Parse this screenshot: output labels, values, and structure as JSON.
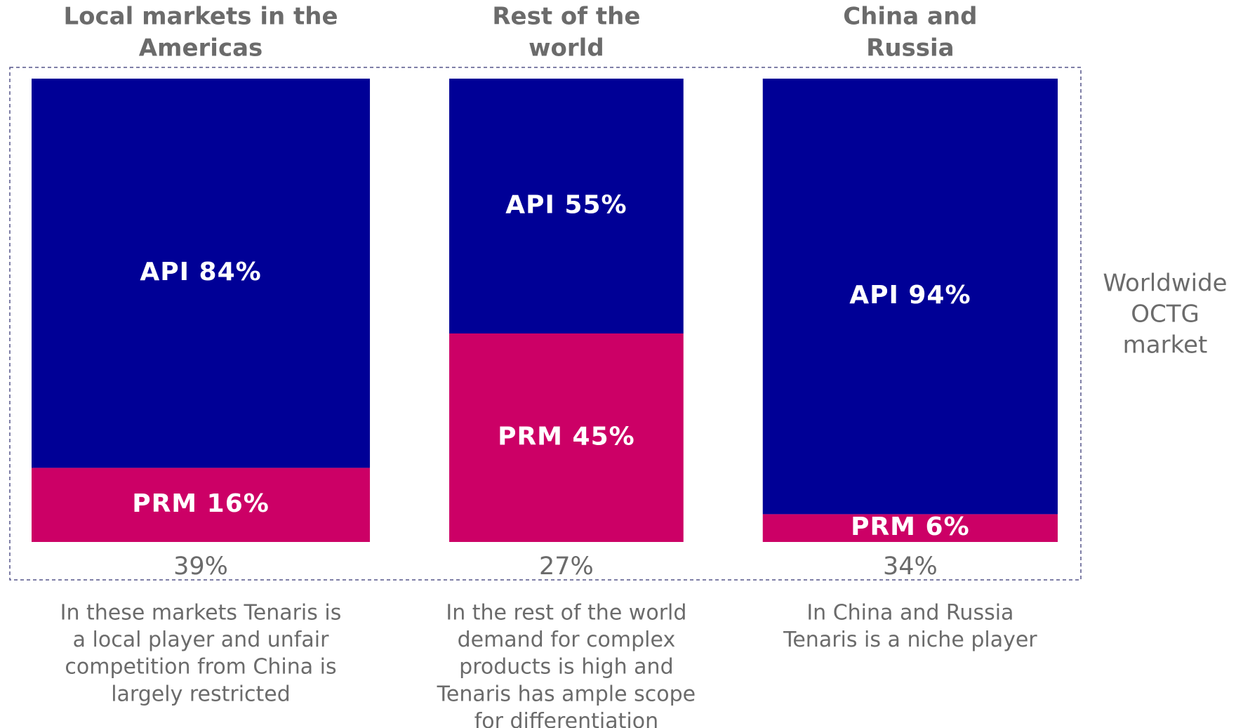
{
  "chart_data": {
    "type": "mekko",
    "categories": [
      [
        "Local markets in the",
        "Americas"
      ],
      [
        "Rest of the",
        "world"
      ],
      [
        "China and",
        "Russia"
      ]
    ],
    "widths": [
      39,
      27,
      34
    ],
    "width_labels": [
      "39%",
      "27%",
      "34%"
    ],
    "series": [
      {
        "name": "PRM",
        "color": "#cc0066",
        "values": [
          16,
          45,
          6
        ],
        "value_labels": [
          "PRM 16%",
          "PRM 45%",
          "PRM 6%"
        ]
      },
      {
        "name": "API",
        "color": "#000096",
        "values": [
          84,
          55,
          94
        ],
        "value_labels": [
          "API 84%",
          "API 55%",
          "API 94%"
        ]
      }
    ],
    "ylim": [
      0,
      100
    ],
    "side_label": [
      "Worldwide",
      "OCTG",
      "market"
    ],
    "descriptions": [
      [
        "In these markets Tenaris is",
        "a local player and unfair",
        "competition from China is",
        "largely restricted"
      ],
      [
        "In the rest of the world",
        "demand for complex",
        "products is high and",
        "Tenaris has ample scope",
        "for differentiation"
      ],
      [
        "In China and Russia",
        "Tenaris is a niche player"
      ]
    ]
  }
}
